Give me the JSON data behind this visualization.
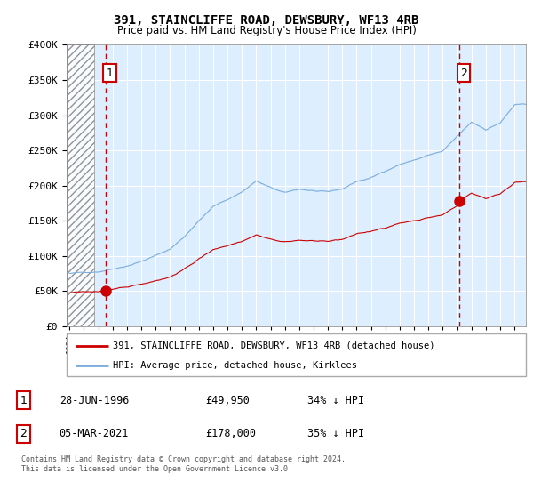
{
  "title": "391, STAINCLIFFE ROAD, DEWSBURY, WF13 4RB",
  "subtitle": "Price paid vs. HM Land Registry's House Price Index (HPI)",
  "property_label": "391, STAINCLIFFE ROAD, DEWSBURY, WF13 4RB (detached house)",
  "hpi_label": "HPI: Average price, detached house, Kirklees",
  "sale1_date": "28-JUN-1996",
  "sale1_price": "£49,950",
  "sale1_note": "34% ↓ HPI",
  "sale2_date": "05-MAR-2021",
  "sale2_price": "£178,000",
  "sale2_note": "35% ↓ HPI",
  "footer": "Contains HM Land Registry data © Crown copyright and database right 2024.\nThis data is licensed under the Open Government Licence v3.0.",
  "property_color": "#cc0000",
  "hpi_color": "#7aacdc",
  "bg_color": "#ddeeff",
  "ylim": [
    0,
    400000
  ],
  "yticks": [
    0,
    50000,
    100000,
    150000,
    200000,
    250000,
    300000,
    350000,
    400000
  ],
  "sale1_x": 1996.5,
  "sale1_y": 49950,
  "sale2_x": 2021.17,
  "sale2_y": 178000,
  "hatch_end_year": 1995.7,
  "xlim_left": 1993.8,
  "xlim_right": 2025.8
}
